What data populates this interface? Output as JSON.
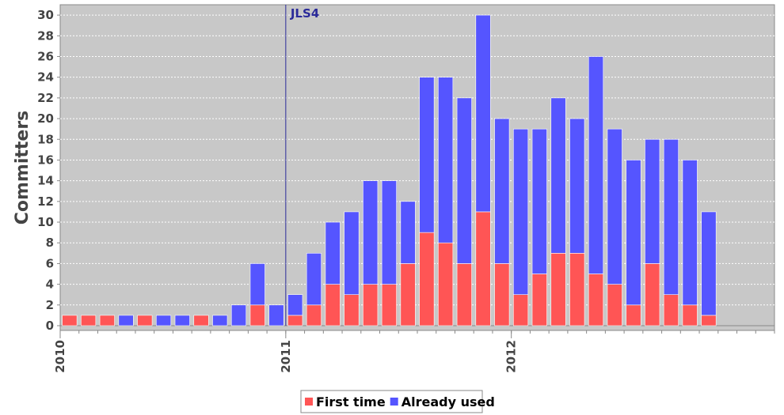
{
  "chart_data": {
    "type": "bar",
    "stacked": true,
    "ylabel": "Committers",
    "ylim": [
      0,
      31
    ],
    "yticks": [
      0,
      2,
      4,
      6,
      8,
      10,
      12,
      14,
      16,
      18,
      20,
      22,
      24,
      26,
      28,
      30
    ],
    "x_start": "2010-01",
    "x_end": "2013-03",
    "x_tick_labels": [
      {
        "label": "2010",
        "date": "2010-01"
      },
      {
        "label": "2011",
        "date": "2011-01"
      },
      {
        "label": "2012",
        "date": "2012-01"
      }
    ],
    "months": [
      "2010-01",
      "2010-02",
      "2010-03",
      "2010-04",
      "2010-05",
      "2010-06",
      "2010-07",
      "2010-08",
      "2010-09",
      "2010-10",
      "2010-11",
      "2010-12",
      "2011-01",
      "2011-02",
      "2011-03",
      "2011-04",
      "2011-05",
      "2011-06",
      "2011-07",
      "2011-08",
      "2011-09",
      "2011-10",
      "2011-11",
      "2011-12",
      "2012-01",
      "2012-02",
      "2012-03",
      "2012-04",
      "2012-05",
      "2012-06",
      "2012-07",
      "2012-08",
      "2012-09",
      "2012-10",
      "2012-11",
      "2012-12",
      "2013-01"
    ],
    "series": [
      {
        "name": "First time",
        "color": "#ff5555",
        "values": [
          1,
          1,
          1,
          0,
          1,
          0,
          0,
          1,
          0,
          0,
          2,
          0,
          1,
          2,
          4,
          3,
          4,
          4,
          6,
          9,
          8,
          6,
          11,
          6,
          3,
          5,
          7,
          7,
          5,
          4,
          2,
          6,
          3,
          2,
          1,
          0,
          0
        ]
      },
      {
        "name": "Already used",
        "color": "#5555ff",
        "values": [
          0,
          0,
          0,
          1,
          0,
          1,
          1,
          0,
          1,
          2,
          4,
          2,
          2,
          5,
          6,
          8,
          10,
          10,
          6,
          15,
          16,
          16,
          19,
          14,
          16,
          14,
          15,
          13,
          21,
          15,
          14,
          12,
          15,
          14,
          10,
          0,
          0
        ]
      }
    ],
    "annotations": [
      {
        "label": "JLS4",
        "date": "2011-01",
        "color": "#2a2a99"
      }
    ],
    "grid": true,
    "legend_position": "bottom-center",
    "background": "#c8c8c8"
  }
}
